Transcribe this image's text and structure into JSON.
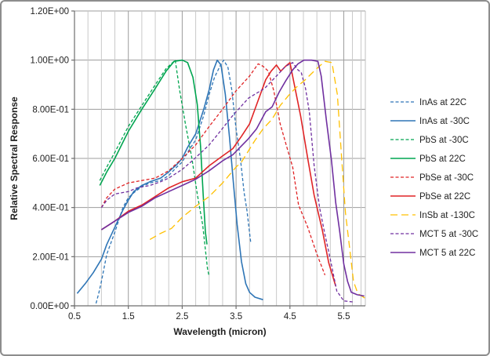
{
  "chart_data": {
    "type": "line",
    "title": "",
    "xlabel": "Wavelength (micron)",
    "ylabel": "Relative Spectral Response",
    "x_range": [
      0.5,
      5.9
    ],
    "y_range": [
      0,
      1.2
    ],
    "grid": "on",
    "legend_position": "right",
    "x_ticks": [
      {
        "value": 0.5,
        "label": "0.5"
      },
      {
        "value": 1.5,
        "label": "1.5"
      },
      {
        "value": 2.5,
        "label": "2.5"
      },
      {
        "value": 3.5,
        "label": "3.5"
      },
      {
        "value": 4.5,
        "label": "4.5"
      },
      {
        "value": 5.5,
        "label": "5.5"
      }
    ],
    "y_ticks": [
      {
        "value": 0.0,
        "label": "0.00E+00"
      },
      {
        "value": 0.2,
        "label": "2.00E-01"
      },
      {
        "value": 0.4,
        "label": "4.00E-01"
      },
      {
        "value": 0.6,
        "label": "6.00E-01"
      },
      {
        "value": 0.8,
        "label": "8.00E-01"
      },
      {
        "value": 1.0,
        "label": "1.00E+00"
      },
      {
        "value": 1.2,
        "label": "1.20E+00"
      }
    ],
    "x_minor_gridlines": [
      0.75,
      1.0,
      1.25,
      1.75,
      2.0,
      2.25,
      2.75,
      3.0,
      3.25,
      3.75,
      4.0,
      4.25,
      4.75,
      5.0,
      5.25,
      5.66,
      5.82
    ],
    "x_major_gridlines": [
      1.5,
      2.5,
      3.5,
      4.5,
      5.5
    ],
    "colors": {
      "blue": "#2E75B6",
      "green": "#00A550",
      "red": "#E02426",
      "gold": "#FFC000",
      "purple": "#7030A0",
      "grid_minor": "#C9C9C9",
      "grid_major": "#9C9C9C",
      "axis": "#6E6E6E",
      "plot_border": "#BFBFBF"
    },
    "series": [
      {
        "name": "InAs at 22C",
        "color": "#2E75B6",
        "style": "dashed",
        "points": [
          [
            0.9,
            0.01
          ],
          [
            0.95,
            0.05
          ],
          [
            1.0,
            0.1
          ],
          [
            1.1,
            0.21
          ],
          [
            1.25,
            0.3
          ],
          [
            1.4,
            0.4
          ],
          [
            1.5,
            0.44
          ],
          [
            1.6,
            0.46
          ],
          [
            1.75,
            0.485
          ],
          [
            1.9,
            0.5
          ],
          [
            2.1,
            0.51
          ],
          [
            2.25,
            0.53
          ],
          [
            2.4,
            0.565
          ],
          [
            2.5,
            0.585
          ],
          [
            2.6,
            0.625
          ],
          [
            2.75,
            0.675
          ],
          [
            2.9,
            0.775
          ],
          [
            3.0,
            0.86
          ],
          [
            3.1,
            0.93
          ],
          [
            3.2,
            0.975
          ],
          [
            3.27,
            1.0
          ],
          [
            3.35,
            0.97
          ],
          [
            3.42,
            0.88
          ],
          [
            3.5,
            0.72
          ],
          [
            3.58,
            0.6
          ],
          [
            3.65,
            0.46
          ],
          [
            3.7,
            0.39
          ],
          [
            3.77,
            0.26
          ]
        ]
      },
      {
        "name": "InAs at -30C",
        "color": "#2E75B6",
        "style": "solid",
        "points": [
          [
            0.55,
            0.05
          ],
          [
            0.7,
            0.09
          ],
          [
            0.85,
            0.135
          ],
          [
            1.0,
            0.19
          ],
          [
            1.1,
            0.25
          ],
          [
            1.25,
            0.32
          ],
          [
            1.4,
            0.39
          ],
          [
            1.5,
            0.43
          ],
          [
            1.6,
            0.465
          ],
          [
            1.75,
            0.49
          ],
          [
            1.9,
            0.505
          ],
          [
            2.1,
            0.52
          ],
          [
            2.25,
            0.545
          ],
          [
            2.4,
            0.575
          ],
          [
            2.5,
            0.6
          ],
          [
            2.6,
            0.645
          ],
          [
            2.75,
            0.7
          ],
          [
            2.9,
            0.8
          ],
          [
            3.0,
            0.88
          ],
          [
            3.08,
            0.96
          ],
          [
            3.15,
            1.0
          ],
          [
            3.22,
            0.98
          ],
          [
            3.3,
            0.86
          ],
          [
            3.38,
            0.68
          ],
          [
            3.45,
            0.5
          ],
          [
            3.52,
            0.33
          ],
          [
            3.6,
            0.18
          ],
          [
            3.68,
            0.09
          ],
          [
            3.75,
            0.055
          ],
          [
            3.85,
            0.035
          ],
          [
            4.0,
            0.025
          ]
        ]
      },
      {
        "name": "PbS at -30C",
        "color": "#00A550",
        "style": "dashed",
        "points": [
          [
            0.97,
            0.51
          ],
          [
            1.1,
            0.565
          ],
          [
            1.25,
            0.625
          ],
          [
            1.5,
            0.73
          ],
          [
            1.75,
            0.815
          ],
          [
            2.0,
            0.9
          ],
          [
            2.2,
            0.965
          ],
          [
            2.37,
            1.0
          ],
          [
            2.45,
            0.88
          ],
          [
            2.56,
            0.74
          ],
          [
            2.68,
            0.6
          ],
          [
            2.78,
            0.455
          ],
          [
            2.88,
            0.33
          ],
          [
            2.97,
            0.15
          ],
          [
            3.0,
            0.12
          ]
        ]
      },
      {
        "name": "PbS at 22C",
        "color": "#00A550",
        "style": "solid",
        "points": [
          [
            0.97,
            0.49
          ],
          [
            1.1,
            0.545
          ],
          [
            1.25,
            0.6
          ],
          [
            1.5,
            0.71
          ],
          [
            1.75,
            0.8
          ],
          [
            2.0,
            0.885
          ],
          [
            2.2,
            0.955
          ],
          [
            2.35,
            0.995
          ],
          [
            2.5,
            1.0
          ],
          [
            2.6,
            0.99
          ],
          [
            2.7,
            0.93
          ],
          [
            2.78,
            0.82
          ],
          [
            2.84,
            0.65
          ],
          [
            2.89,
            0.45
          ],
          [
            2.93,
            0.3
          ],
          [
            2.96,
            0.25
          ]
        ]
      },
      {
        "name": "PbSe at -30C",
        "color": "#E02426",
        "style": "dashed",
        "points": [
          [
            1.0,
            0.4
          ],
          [
            1.1,
            0.44
          ],
          [
            1.25,
            0.475
          ],
          [
            1.5,
            0.5
          ],
          [
            1.75,
            0.51
          ],
          [
            2.0,
            0.52
          ],
          [
            2.25,
            0.55
          ],
          [
            2.5,
            0.6
          ],
          [
            2.75,
            0.655
          ],
          [
            3.0,
            0.73
          ],
          [
            3.25,
            0.8
          ],
          [
            3.5,
            0.875
          ],
          [
            3.75,
            0.935
          ],
          [
            3.91,
            0.985
          ],
          [
            4.0,
            0.975
          ],
          [
            4.1,
            0.955
          ],
          [
            4.2,
            0.875
          ],
          [
            4.32,
            0.74
          ],
          [
            4.45,
            0.64
          ],
          [
            4.55,
            0.565
          ],
          [
            4.66,
            0.41
          ],
          [
            4.83,
            0.32
          ],
          [
            5.0,
            0.21
          ],
          [
            5.15,
            0.125
          ]
        ]
      },
      {
        "name": "PbSe at 22C",
        "color": "#E02426",
        "style": "solid",
        "points": [
          [
            1.0,
            0.31
          ],
          [
            1.25,
            0.345
          ],
          [
            1.5,
            0.385
          ],
          [
            1.75,
            0.41
          ],
          [
            2.0,
            0.445
          ],
          [
            2.25,
            0.48
          ],
          [
            2.5,
            0.505
          ],
          [
            2.75,
            0.52
          ],
          [
            3.0,
            0.57
          ],
          [
            3.25,
            0.61
          ],
          [
            3.44,
            0.64
          ],
          [
            3.6,
            0.69
          ],
          [
            3.75,
            0.74
          ],
          [
            3.9,
            0.83
          ],
          [
            4.05,
            0.92
          ],
          [
            4.15,
            0.955
          ],
          [
            4.25,
            0.98
          ],
          [
            4.33,
            0.955
          ],
          [
            4.42,
            0.975
          ],
          [
            4.5,
            0.99
          ],
          [
            4.6,
            0.88
          ],
          [
            4.7,
            0.77
          ],
          [
            4.83,
            0.6
          ],
          [
            4.95,
            0.45
          ],
          [
            5.1,
            0.31
          ],
          [
            5.22,
            0.175
          ],
          [
            5.35,
            0.08
          ]
        ]
      },
      {
        "name": "InSb at -130C",
        "color": "#FFC000",
        "style": "longdash",
        "points": [
          [
            1.9,
            0.27
          ],
          [
            2.1,
            0.295
          ],
          [
            2.3,
            0.315
          ],
          [
            2.5,
            0.36
          ],
          [
            2.75,
            0.405
          ],
          [
            3.0,
            0.445
          ],
          [
            3.25,
            0.5
          ],
          [
            3.5,
            0.565
          ],
          [
            3.6,
            0.585
          ],
          [
            3.84,
            0.67
          ],
          [
            4.0,
            0.72
          ],
          [
            4.17,
            0.76
          ],
          [
            4.32,
            0.815
          ],
          [
            4.47,
            0.855
          ],
          [
            4.62,
            0.89
          ],
          [
            4.76,
            0.915
          ],
          [
            4.9,
            0.945
          ],
          [
            5.02,
            0.97
          ],
          [
            5.15,
            0.995
          ],
          [
            5.28,
            0.99
          ],
          [
            5.38,
            0.86
          ],
          [
            5.46,
            0.6
          ],
          [
            5.53,
            0.38
          ],
          [
            5.6,
            0.25
          ],
          [
            5.68,
            0.1
          ],
          [
            5.76,
            0.05
          ],
          [
            5.9,
            0.03
          ]
        ]
      },
      {
        "name": "MCT 5 at -30C",
        "color": "#7030A0",
        "style": "dashed",
        "points": [
          [
            1.0,
            0.4
          ],
          [
            1.1,
            0.43
          ],
          [
            1.25,
            0.455
          ],
          [
            1.5,
            0.465
          ],
          [
            1.66,
            0.48
          ],
          [
            1.9,
            0.49
          ],
          [
            2.1,
            0.505
          ],
          [
            2.25,
            0.52
          ],
          [
            2.5,
            0.555
          ],
          [
            2.71,
            0.595
          ],
          [
            3.0,
            0.655
          ],
          [
            3.15,
            0.695
          ],
          [
            3.44,
            0.775
          ],
          [
            3.73,
            0.845
          ],
          [
            4.03,
            0.885
          ],
          [
            4.25,
            0.935
          ],
          [
            4.42,
            0.975
          ],
          [
            4.55,
            0.99
          ],
          [
            4.65,
            0.96
          ],
          [
            4.71,
            0.95
          ],
          [
            4.79,
            0.885
          ],
          [
            4.86,
            0.79
          ],
          [
            4.95,
            0.57
          ],
          [
            5.05,
            0.4
          ],
          [
            5.15,
            0.29
          ],
          [
            5.25,
            0.19
          ],
          [
            5.37,
            0.06
          ],
          [
            5.5,
            0.02
          ],
          [
            5.7,
            0.015
          ]
        ]
      },
      {
        "name": "MCT 5 at 22C",
        "color": "#7030A0",
        "style": "solid",
        "points": [
          [
            1.0,
            0.31
          ],
          [
            1.25,
            0.345
          ],
          [
            1.5,
            0.38
          ],
          [
            1.75,
            0.405
          ],
          [
            2.0,
            0.44
          ],
          [
            2.25,
            0.465
          ],
          [
            2.5,
            0.49
          ],
          [
            2.75,
            0.515
          ],
          [
            3.0,
            0.55
          ],
          [
            3.25,
            0.59
          ],
          [
            3.44,
            0.615
          ],
          [
            3.73,
            0.68
          ],
          [
            3.88,
            0.72
          ],
          [
            4.05,
            0.79
          ],
          [
            4.17,
            0.81
          ],
          [
            4.3,
            0.87
          ],
          [
            4.42,
            0.915
          ],
          [
            4.55,
            0.96
          ],
          [
            4.65,
            0.985
          ],
          [
            4.76,
            1.0
          ],
          [
            4.9,
            1.0
          ],
          [
            5.02,
            0.995
          ],
          [
            5.08,
            0.935
          ],
          [
            5.18,
            0.75
          ],
          [
            5.27,
            0.595
          ],
          [
            5.35,
            0.42
          ],
          [
            5.42,
            0.31
          ],
          [
            5.5,
            0.17
          ],
          [
            5.57,
            0.1
          ],
          [
            5.64,
            0.055
          ],
          [
            5.75,
            0.045
          ],
          [
            5.88,
            0.04
          ]
        ]
      }
    ],
    "legend": [
      {
        "label": "InAs at 22C"
      },
      {
        "label": "InAs at -30C"
      },
      {
        "label": "PbS at -30C"
      },
      {
        "label": "PbS at 22C"
      },
      {
        "label": "PbSe at -30C"
      },
      {
        "label": "PbSe at 22C"
      },
      {
        "label": "InSb at -130C"
      },
      {
        "label": "MCT 5 at -30C"
      },
      {
        "label": "MCT 5 at 22C"
      }
    ]
  }
}
